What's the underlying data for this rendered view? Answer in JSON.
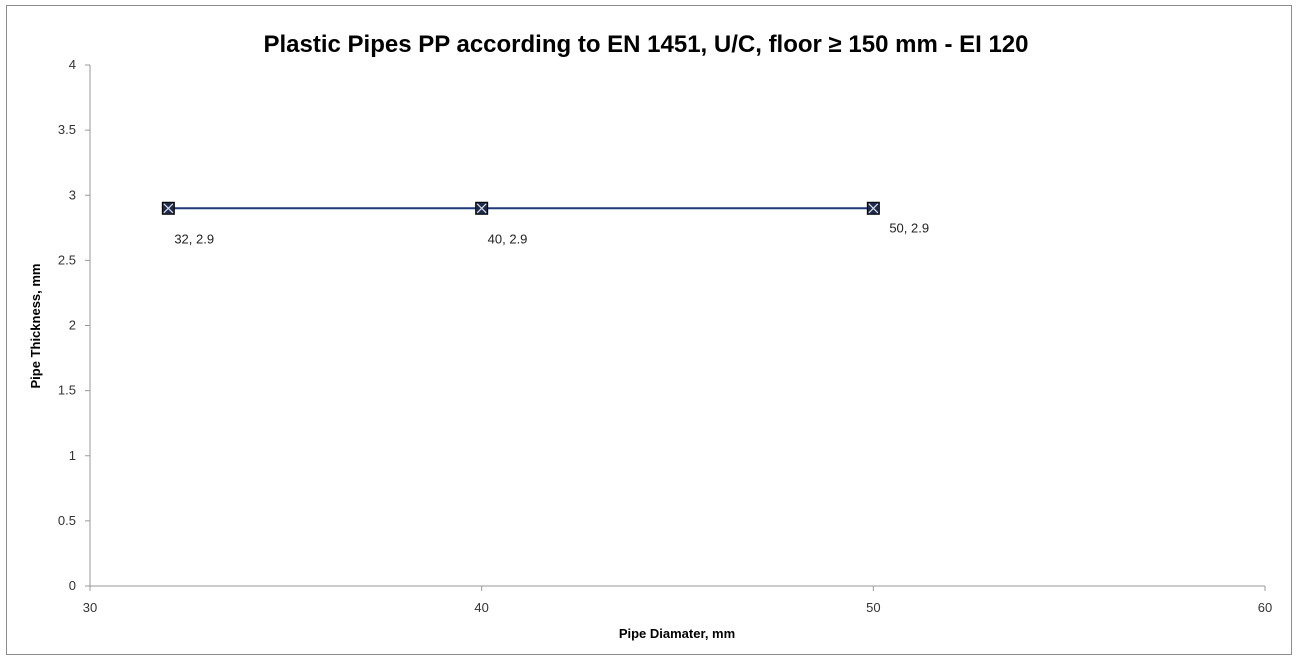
{
  "chart_data": {
    "type": "line",
    "title": "Plastic Pipes PP according to EN 1451, U/C, floor ≥ 150 mm - EI 120",
    "xlabel": "Pipe Diamater, mm",
    "ylabel": "Pipe Thickness, mm",
    "xlim": [
      30,
      60
    ],
    "ylim": [
      0,
      4
    ],
    "xticks": [
      30,
      40,
      50,
      60
    ],
    "yticks": [
      0,
      0.5,
      1,
      1.5,
      2,
      2.5,
      3,
      3.5,
      4
    ],
    "grid": false,
    "legend": "none",
    "series": [
      {
        "color": "#1f3a7a",
        "marker": "square-x",
        "x": [
          32,
          40,
          50
        ],
        "y": [
          2.9,
          2.9,
          2.9
        ],
        "data_labels": [
          "32, 2.9",
          "40, 2.9",
          "50, 2.9"
        ]
      }
    ]
  },
  "colors": {
    "axis": "#9a9a9a",
    "frame": "#8c8c8c",
    "series_line": "#1f3a7a",
    "marker_fill": "#1e2a4a"
  }
}
